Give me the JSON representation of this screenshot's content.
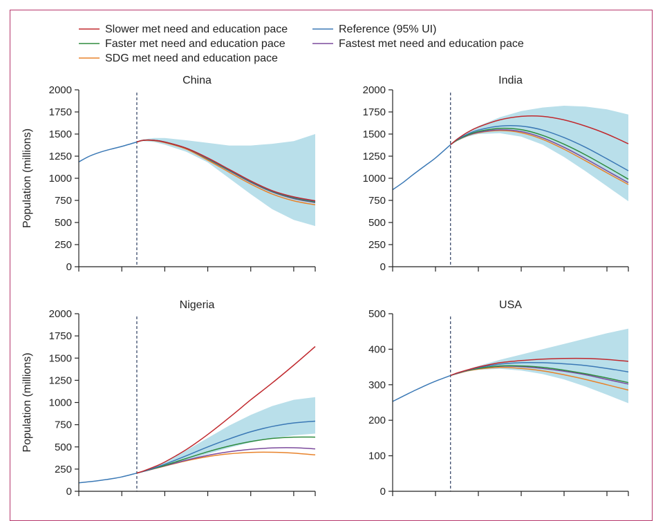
{
  "legend": [
    {
      "label": "Slower met need and education pace",
      "color": "#c0282d"
    },
    {
      "label": "Reference (95% UI)",
      "color": "#3a78b5"
    },
    {
      "label": "Faster met need and education pace",
      "color": "#2e8b3e"
    },
    {
      "label": "Fastest met need and education pace",
      "color": "#7b4a9c"
    },
    {
      "label": "SDG met need and education pace",
      "color": "#e8822a"
    }
  ],
  "band_color": "#b9dfea",
  "chart_data": [
    {
      "type": "line",
      "title": "China",
      "ylabel": "Population (millions)",
      "ylim": [
        0,
        2000
      ],
      "yticks": [
        "0",
        "250",
        "500",
        "750",
        "1000",
        "1250",
        "1500",
        "1750",
        "2000"
      ],
      "xlim": [
        1990,
        2100
      ],
      "dashed_x": 2017,
      "x_hist": [
        1990,
        1995,
        2000,
        2005,
        2010,
        2017
      ],
      "hist": [
        1185,
        1250,
        1295,
        1330,
        1360,
        1410
      ],
      "x": [
        2017,
        2020,
        2025,
        2030,
        2040,
        2050,
        2060,
        2070,
        2080,
        2090,
        2100
      ],
      "band_upper": [
        1410,
        1440,
        1455,
        1455,
        1430,
        1400,
        1370,
        1370,
        1390,
        1420,
        1500
      ],
      "band_lower": [
        1410,
        1420,
        1410,
        1380,
        1300,
        1180,
        1000,
        820,
        650,
        530,
        460
      ],
      "series": [
        {
          "name": "Slower met need and education pace",
          "values": [
            1410,
            1430,
            1430,
            1410,
            1340,
            1230,
            1100,
            970,
            860,
            790,
            745
          ]
        },
        {
          "name": "Reference (95% UI)",
          "values": [
            1410,
            1430,
            1430,
            1410,
            1340,
            1225,
            1095,
            965,
            855,
            785,
            740
          ]
        },
        {
          "name": "Faster met need and education pace",
          "values": [
            1410,
            1430,
            1430,
            1410,
            1340,
            1220,
            1090,
            960,
            850,
            778,
            732
          ]
        },
        {
          "name": "Fastest met need and education pace",
          "values": [
            1410,
            1430,
            1428,
            1408,
            1338,
            1218,
            1085,
            955,
            845,
            770,
            725
          ]
        },
        {
          "name": "SDG met need and education pace",
          "values": [
            1410,
            1428,
            1425,
            1403,
            1330,
            1205,
            1068,
            935,
            822,
            745,
            700
          ]
        }
      ]
    },
    {
      "type": "line",
      "title": "India",
      "ylabel": "",
      "ylim": [
        0,
        2000
      ],
      "yticks": [
        "0",
        "250",
        "500",
        "750",
        "1000",
        "1250",
        "1500",
        "1750",
        "2000"
      ],
      "xlim": [
        1990,
        2100
      ],
      "dashed_x": 2017,
      "x_hist": [
        1990,
        1995,
        2000,
        2005,
        2010,
        2017
      ],
      "hist": [
        870,
        955,
        1050,
        1140,
        1230,
        1380
      ],
      "x": [
        2017,
        2020,
        2025,
        2030,
        2040,
        2050,
        2060,
        2070,
        2080,
        2090,
        2100
      ],
      "band_upper": [
        1380,
        1450,
        1530,
        1590,
        1690,
        1760,
        1800,
        1820,
        1810,
        1780,
        1720
      ],
      "band_lower": [
        1380,
        1420,
        1470,
        1500,
        1510,
        1470,
        1380,
        1240,
        1080,
        910,
        740
      ],
      "series": [
        {
          "name": "Slower met need and education pace",
          "values": [
            1380,
            1440,
            1520,
            1580,
            1660,
            1700,
            1700,
            1660,
            1590,
            1500,
            1390
          ]
        },
        {
          "name": "Reference (95% UI)",
          "values": [
            1380,
            1435,
            1500,
            1545,
            1590,
            1590,
            1545,
            1460,
            1350,
            1220,
            1085
          ]
        },
        {
          "name": "Faster met need and education pace",
          "values": [
            1380,
            1430,
            1490,
            1530,
            1565,
            1550,
            1485,
            1385,
            1265,
            1130,
            990
          ]
        },
        {
          "name": "Fastest met need and education pace",
          "values": [
            1380,
            1430,
            1485,
            1520,
            1548,
            1528,
            1458,
            1350,
            1222,
            1085,
            950
          ]
        },
        {
          "name": "SDG met need and education pace",
          "values": [
            1380,
            1428,
            1482,
            1515,
            1540,
            1515,
            1440,
            1328,
            1198,
            1062,
            930
          ]
        }
      ]
    },
    {
      "type": "line",
      "title": "Nigeria",
      "ylabel": "Population (millions)",
      "ylim": [
        0,
        2000
      ],
      "yticks": [
        "0",
        "250",
        "500",
        "750",
        "1000",
        "1250",
        "1500",
        "1750",
        "2000"
      ],
      "xlim": [
        1990,
        2100
      ],
      "dashed_x": 2017,
      "x_hist": [
        1990,
        1995,
        2000,
        2005,
        2010,
        2017
      ],
      "hist": [
        95,
        108,
        123,
        140,
        162,
        205
      ],
      "x": [
        2017,
        2020,
        2025,
        2030,
        2040,
        2050,
        2060,
        2070,
        2080,
        2090,
        2100
      ],
      "band_upper": [
        205,
        230,
        275,
        330,
        460,
        600,
        740,
        860,
        960,
        1030,
        1060
      ],
      "band_lower": [
        205,
        222,
        255,
        290,
        350,
        420,
        490,
        550,
        600,
        630,
        650
      ],
      "series": [
        {
          "name": "Slower met need and education pace",
          "values": [
            205,
            228,
            275,
            330,
            470,
            640,
            830,
            1030,
            1220,
            1420,
            1630
          ]
        },
        {
          "name": "Reference (95% UI)",
          "values": [
            205,
            225,
            263,
            305,
            400,
            500,
            590,
            670,
            730,
            770,
            790
          ]
        },
        {
          "name": "Faster met need and education pace",
          "values": [
            205,
            224,
            258,
            292,
            370,
            445,
            510,
            560,
            595,
            610,
            610
          ]
        },
        {
          "name": "Fastest met need and education pace",
          "values": [
            205,
            223,
            255,
            286,
            350,
            405,
            445,
            472,
            488,
            490,
            478
          ]
        },
        {
          "name": "SDG met need and education pace",
          "values": [
            205,
            223,
            254,
            284,
            343,
            390,
            422,
            438,
            440,
            430,
            410
          ]
        }
      ]
    },
    {
      "type": "line",
      "title": "USA",
      "ylabel": "",
      "ylim": [
        0,
        500
      ],
      "yticks": [
        "0",
        "100",
        "200",
        "300",
        "400",
        "500"
      ],
      "xlim": [
        1990,
        2100
      ],
      "dashed_x": 2017,
      "x_hist": [
        1990,
        1995,
        2000,
        2005,
        2010,
        2017
      ],
      "hist": [
        253,
        268,
        283,
        297,
        310,
        326
      ],
      "x": [
        2017,
        2020,
        2025,
        2030,
        2040,
        2050,
        2060,
        2070,
        2080,
        2090,
        2100
      ],
      "band_upper": [
        326,
        333,
        343,
        353,
        370,
        385,
        400,
        415,
        430,
        445,
        458
      ],
      "band_lower": [
        326,
        331,
        338,
        342,
        345,
        340,
        330,
        315,
        295,
        272,
        248
      ],
      "series": [
        {
          "name": "Slower met need and education pace",
          "values": [
            326,
            333,
            342,
            350,
            362,
            368,
            372,
            374,
            374,
            371,
            366
          ]
        },
        {
          "name": "Reference (95% UI)",
          "values": [
            326,
            332,
            341,
            348,
            358,
            362,
            362,
            359,
            354,
            346,
            336
          ]
        },
        {
          "name": "Faster met need and education pace",
          "values": [
            326,
            332,
            340,
            346,
            353,
            353,
            349,
            341,
            331,
            319,
            306
          ]
        },
        {
          "name": "Fastest met need and education pace",
          "values": [
            326,
            332,
            340,
            346,
            352,
            351,
            346,
            338,
            328,
            315,
            302
          ]
        },
        {
          "name": "SDG met need and education pace",
          "values": [
            326,
            331,
            339,
            344,
            349,
            346,
            339,
            328,
            315,
            300,
            285
          ]
        }
      ]
    }
  ]
}
